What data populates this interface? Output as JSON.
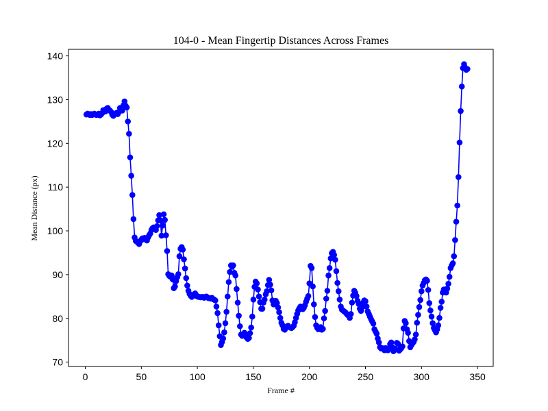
{
  "chart_data": {
    "type": "line",
    "title": "104-0 - Mean Fingertip Distances Across Frames",
    "xlabel": "Frame #",
    "ylabel": "Mean Distance (px)",
    "xlim": [
      -15,
      364
    ],
    "ylim": [
      69.0,
      141.5
    ],
    "xticks": [
      0,
      50,
      100,
      150,
      200,
      250,
      300,
      350
    ],
    "yticks": [
      70,
      80,
      90,
      100,
      110,
      120,
      130,
      140
    ],
    "grid": false,
    "legend": "none",
    "marker": "circle",
    "color": "#0000ff",
    "series": [
      {
        "values": [
          126.6,
          126.8,
          126.7,
          126.5,
          126.7,
          126.5,
          126.6,
          126.8,
          126.6,
          126.5,
          126.6,
          126.8,
          126.4,
          126.6,
          126.9,
          127.6,
          127.5,
          127.3,
          127.9,
          128.1,
          127.7,
          127.5,
          127.2,
          126.6,
          126.3,
          126.6,
          126.8,
          127.0,
          126.7,
          127.2,
          128.1,
          128.0,
          127.5,
          128.7,
          129.6,
          128.6,
          128.2,
          125.0,
          122.2,
          116.8,
          112.6,
          108.2,
          102.7,
          98.5,
          97.7,
          97.5,
          97.3,
          97.0,
          97.6,
          98.0,
          98.3,
          98.1,
          98.4,
          98.2,
          97.8,
          98.5,
          99.0,
          99.4,
          100.2,
          100.6,
          100.8,
          100.5,
          100.2,
          101.1,
          102.4,
          103.6,
          102.4,
          98.9,
          101.2,
          103.8,
          102.5,
          99.0,
          95.4,
          90.1,
          89.7,
          89.5,
          89.8,
          88.9,
          86.9,
          87.3,
          88.5,
          89.4,
          90.1,
          94.2,
          95.9,
          96.3,
          95.7,
          93.5,
          91.4,
          89.2,
          87.5,
          86.3,
          85.6,
          85.2,
          84.9,
          85.1,
          85.5,
          85.7,
          85.3,
          85.0,
          84.9,
          84.9,
          84.8,
          84.9,
          84.9,
          84.7,
          84.9,
          85.0,
          84.8,
          84.6,
          84.6,
          84.5,
          84.7,
          84.4,
          84.3,
          84.1,
          82.7,
          81.2,
          78.4,
          75.9,
          73.9,
          74.6,
          75.4,
          76.8,
          78.9,
          81.5,
          85.0,
          88.3,
          90.6,
          92.1,
          91.8,
          92.1,
          90.4,
          89.8,
          86.7,
          83.6,
          80.6,
          78.2,
          76.3,
          76.0,
          76.3,
          76.7,
          76.2,
          75.6,
          75.3,
          75.5,
          76.6,
          77.9,
          80.4,
          84.3,
          87.2,
          88.4,
          88.0,
          86.6,
          85.0,
          83.7,
          82.2,
          82.2,
          83.6,
          84.3,
          85.5,
          86.2,
          87.6,
          88.8,
          87.7,
          86.4,
          84.1,
          83.2,
          83.7,
          84.0,
          83.5,
          82.5,
          81.4,
          80.1,
          79.0,
          78.4,
          77.6,
          77.4,
          77.9,
          78.2,
          78.3,
          78.0,
          77.9,
          77.8,
          78.0,
          78.3,
          79.1,
          80.1,
          81.0,
          81.8,
          82.3,
          82.7,
          82.5,
          82.1,
          82.4,
          83.0,
          83.8,
          84.5,
          85.1,
          88.0,
          92.0,
          91.5,
          87.3,
          83.2,
          80.3,
          78.4,
          77.8,
          77.5,
          77.8,
          78.0,
          77.4,
          77.6,
          80.0,
          81.7,
          84.5,
          86.3,
          89.8,
          91.5,
          93.7,
          94.9,
          95.2,
          94.5,
          93.4,
          90.8,
          88.1,
          86.2,
          84.3,
          82.7,
          82.0,
          81.8,
          81.6,
          81.4,
          81.1,
          80.8,
          80.6,
          80.1,
          81.0,
          83.6,
          85.2,
          86.3,
          85.8,
          85.1,
          84.0,
          83.3,
          82.2,
          81.7,
          82.5,
          83.6,
          84.1,
          83.9,
          82.7,
          81.6,
          81.0,
          80.4,
          79.8,
          79.3,
          78.8,
          77.5,
          77.0,
          76.5,
          75.4,
          74.5,
          73.4,
          73.1,
          73.2,
          73.0,
          72.7,
          73.2,
          72.9,
          72.7,
          73.2,
          74.1,
          74.5,
          73.4,
          72.5,
          73.1,
          72.9,
          74.4,
          74.2,
          72.6,
          72.9,
          73.2,
          73.6,
          77.7,
          79.4,
          78.9,
          77.5,
          76.7,
          74.8,
          73.4,
          73.9,
          74.3,
          74.6,
          75.2,
          76.3,
          79.0,
          80.8,
          82.6,
          84.2,
          86.2,
          87.5,
          88.1,
          88.7,
          88.9,
          88.6,
          86.5,
          83.5,
          81.8,
          80.4,
          78.9,
          77.8,
          77.3,
          76.8,
          77.5,
          78.4,
          80.1,
          82.4,
          83.8,
          85.9,
          86.6,
          86.4,
          85.9,
          86.8,
          87.9,
          89.5,
          91.5,
          92.1,
          92.6,
          94.2,
          97.9,
          102.1,
          105.8,
          112.3,
          120.2,
          127.4,
          133.0,
          137.2,
          138.1,
          137.3,
          136.8,
          137.0
        ]
      }
    ]
  }
}
